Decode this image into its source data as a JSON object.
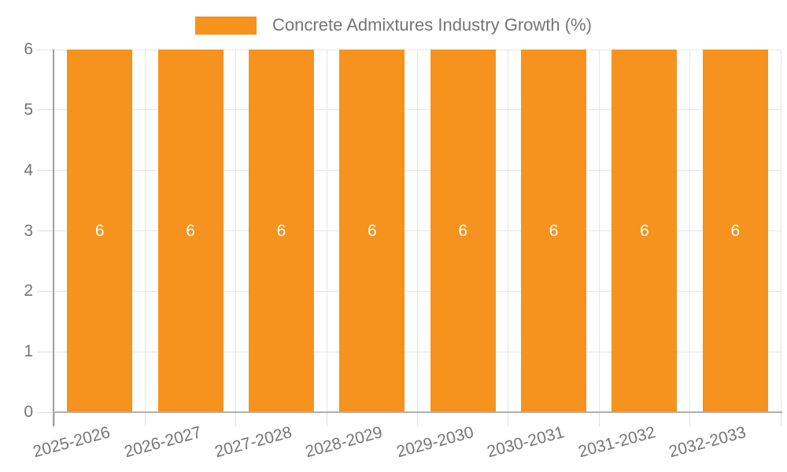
{
  "legend": {
    "label": "Concrete Admixtures Industry Growth (%)"
  },
  "chart_data": {
    "type": "bar",
    "title": "Concrete Admixtures Industry Growth (%)",
    "series_name": "Concrete Admixtures Industry Growth (%)",
    "categories": [
      "2025-2026",
      "2026-2027",
      "2027-2028",
      "2028-2029",
      "2029-2030",
      "2030-2031",
      "2031-2032",
      "2032-2033"
    ],
    "values": [
      6,
      6,
      6,
      6,
      6,
      6,
      6,
      6
    ],
    "bar_labels": [
      "6",
      "6",
      "6",
      "6",
      "6",
      "6",
      "6",
      "6"
    ],
    "xlabel": "",
    "ylabel": "",
    "ylim": [
      0,
      6
    ],
    "yticks": [
      0,
      1,
      2,
      3,
      4,
      5,
      6
    ],
    "grid": true,
    "legend_position": "top-center",
    "x_label_rotation_deg": -15,
    "colors": {
      "bar": "#F6921E",
      "bar_label": "#FFFFFF",
      "axis_text": "#757575",
      "gridline": "#E6E6E6",
      "tick": "#E0E0E0",
      "y_axis_line": "#9E9E9E",
      "x_axis_line": "#B0B0B0",
      "background": "#FFFFFF"
    }
  }
}
